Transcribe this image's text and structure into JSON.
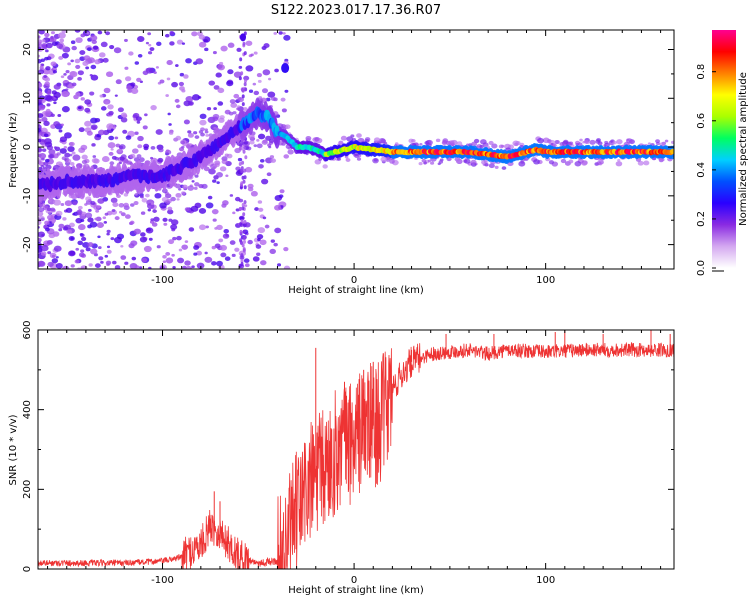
{
  "title": "S122.2023.017.17.36.R07",
  "chart_data": [
    {
      "type": "heatmap",
      "xlabel": "Height of straight line (km)",
      "ylabel": "Frequency (Hz)",
      "xlim": [
        -165,
        167
      ],
      "ylim": [
        -25,
        24
      ],
      "x_ticks": [
        -100,
        0,
        100
      ],
      "y_ticks": [
        -20,
        -10,
        0,
        10,
        20
      ],
      "colorbar": {
        "label": "Normalized spectral amplitude",
        "range": [
          0,
          0.97
        ],
        "ticks": [
          "0.0",
          "0.2",
          "0.4",
          "0.6",
          "0.8"
        ],
        "tick_values": [
          0.0,
          0.2,
          0.4,
          0.6,
          0.8
        ],
        "colors": [
          "#ffffff",
          "#d4a8f0",
          "#8a2be2",
          "#2a00ff",
          "#0050ff",
          "#00d0ff",
          "#00ff60",
          "#aaff00",
          "#ffff00",
          "#ff8000",
          "#ff0000",
          "#ff0090"
        ]
      },
      "ridge": {
        "x": [
          -165,
          -150,
          -130,
          -115,
          -100,
          -90,
          -80,
          -70,
          -60,
          -50,
          -45,
          -40,
          -35,
          -30,
          -25,
          -20,
          -15,
          -10,
          0,
          20,
          40,
          60,
          70,
          80,
          85,
          90,
          95,
          100,
          120,
          140,
          167
        ],
        "y": [
          -8,
          -7,
          -7,
          -6,
          -6,
          -4,
          -2,
          1,
          4,
          7,
          6,
          3,
          2,
          0,
          0,
          -0.5,
          -1.5,
          -1,
          0,
          -1,
          -1,
          -1,
          -1.5,
          -2,
          -1.5,
          -1,
          -0.5,
          -1,
          -1,
          -1,
          -1
        ]
      }
    },
    {
      "type": "line",
      "xlabel": "Height of straight line (km)",
      "ylabel": "SNR (10 * v/v)",
      "xlim": [
        -165,
        167
      ],
      "ylim": [
        0,
        600
      ],
      "x_ticks": [
        -100,
        0,
        100
      ],
      "y_ticks": [
        0,
        200,
        400,
        600
      ],
      "color": "#ee3333",
      "anchors": {
        "x": [
          -165,
          -140,
          -120,
          -100,
          -90,
          -80,
          -75,
          -70,
          -65,
          -60,
          -50,
          -40,
          -35,
          -30,
          -25,
          -20,
          -15,
          -10,
          -5,
          0,
          5,
          10,
          15,
          20,
          25,
          30,
          40,
          50,
          60,
          70,
          80,
          100,
          120,
          140,
          167
        ],
        "y": [
          15,
          15,
          15,
          20,
          30,
          60,
          110,
          90,
          60,
          30,
          15,
          20,
          60,
          140,
          200,
          230,
          250,
          290,
          320,
          320,
          360,
          360,
          380,
          450,
          490,
          520,
          540,
          545,
          550,
          540,
          550,
          545,
          550,
          550,
          550
        ]
      },
      "spikes": [
        {
          "x": -73,
          "y": 195
        },
        {
          "x": -70,
          "y": 170
        },
        {
          "x": -20,
          "y": 555
        },
        {
          "x": -5,
          "y": 470
        },
        {
          "x": 5,
          "y": 500
        },
        {
          "x": 10,
          "y": 520
        },
        {
          "x": 30,
          "y": 550
        },
        {
          "x": 48,
          "y": 590
        },
        {
          "x": 73,
          "y": 590
        },
        {
          "x": 105,
          "y": 595
        },
        {
          "x": 110,
          "y": 600
        },
        {
          "x": 130,
          "y": 590
        },
        {
          "x": 155,
          "y": 600
        },
        {
          "x": 165,
          "y": 590
        }
      ]
    }
  ]
}
